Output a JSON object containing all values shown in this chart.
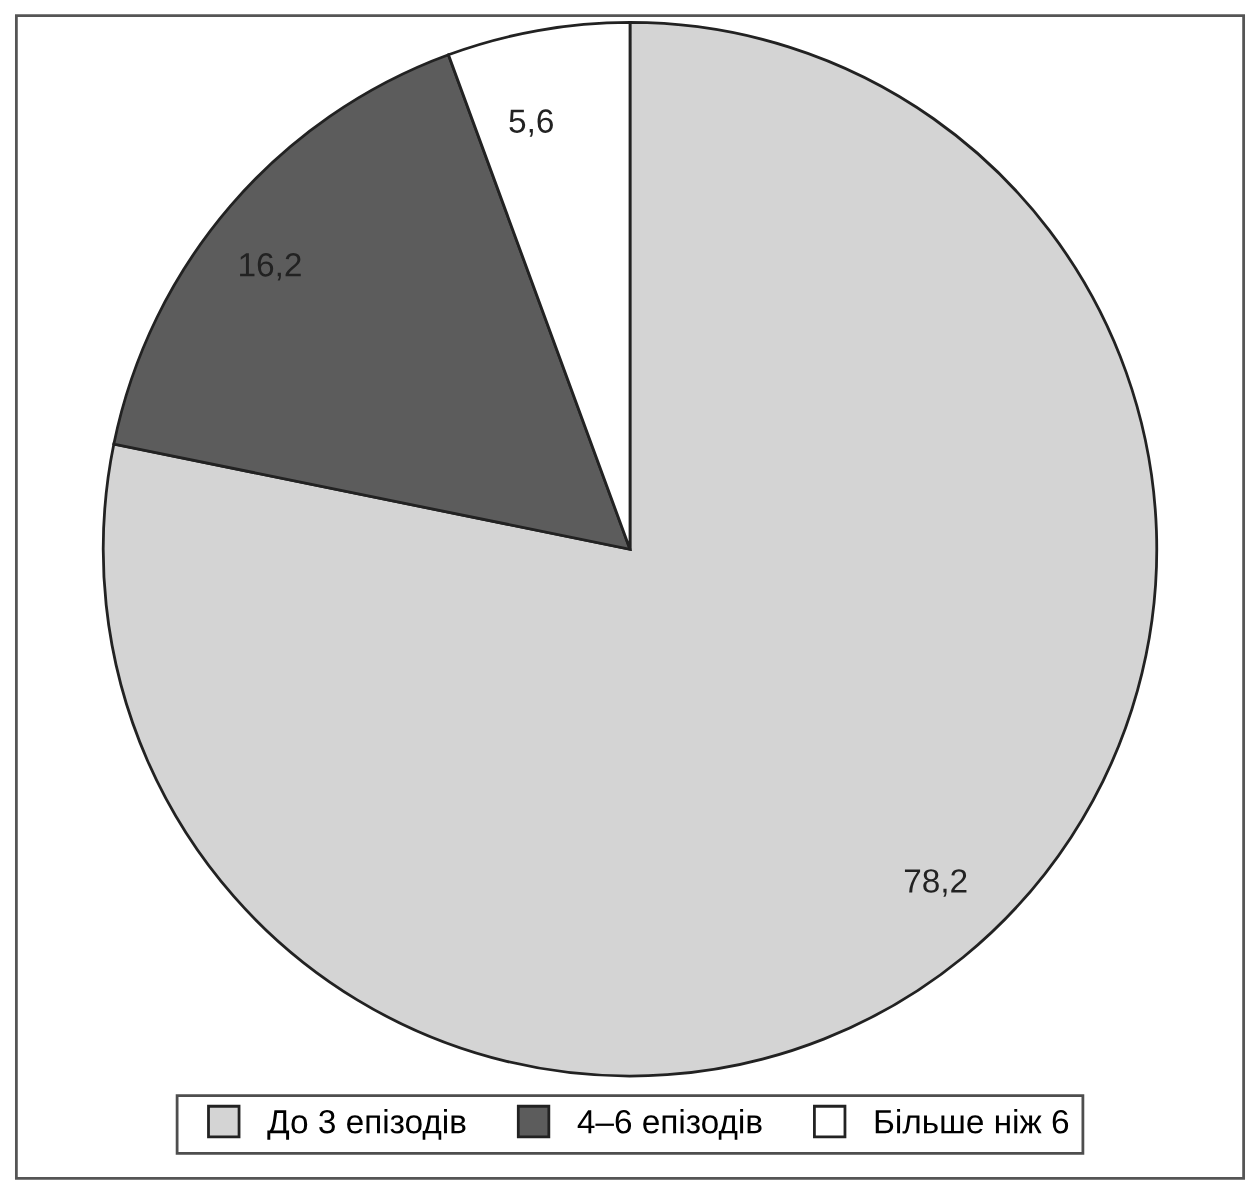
{
  "chart_data": {
    "type": "pie",
    "categories": [
      "До 3 епізодів",
      "4–6 епізодів",
      "Більше ніж 6"
    ],
    "values": [
      78.2,
      16.2,
      5.6
    ],
    "value_labels": [
      "78,2",
      "16,2",
      "5,6"
    ],
    "colors": [
      "#d4d4d4",
      "#5c5c5c",
      "#ffffff"
    ],
    "legend": "bottom"
  }
}
